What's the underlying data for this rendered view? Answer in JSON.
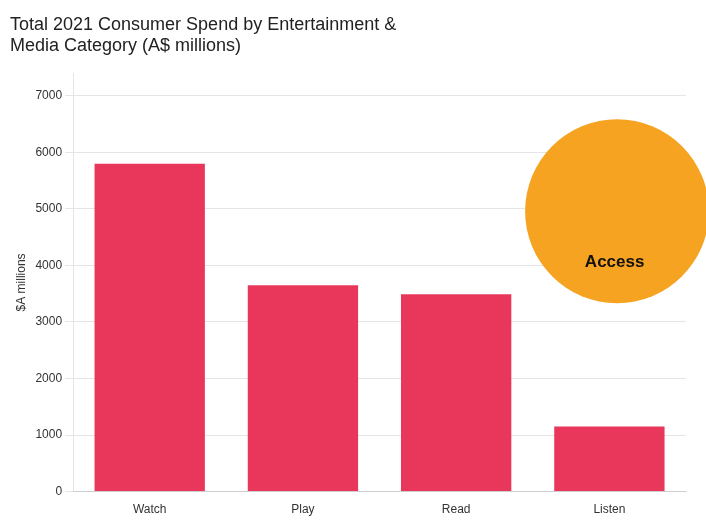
{
  "chart_data": {
    "type": "bar",
    "title": [
      "Total 2021 Consumer Spend by Entertainment &",
      "Media Category (A$ millions)"
    ],
    "y_label": "$A millions",
    "categories": [
      "Watch",
      "Play",
      "Read",
      "Listen"
    ],
    "values": [
      5800,
      3650,
      3490,
      1150
    ],
    "color": "#E8375A",
    "ylim": [
      0,
      7400
    ],
    "yticks": [
      0,
      1000,
      2000,
      3000,
      4000,
      5000,
      6000,
      7000
    ],
    "grid": true,
    "annotations": [
      {
        "text": "Access",
        "color": "#F5A320"
      }
    ]
  }
}
